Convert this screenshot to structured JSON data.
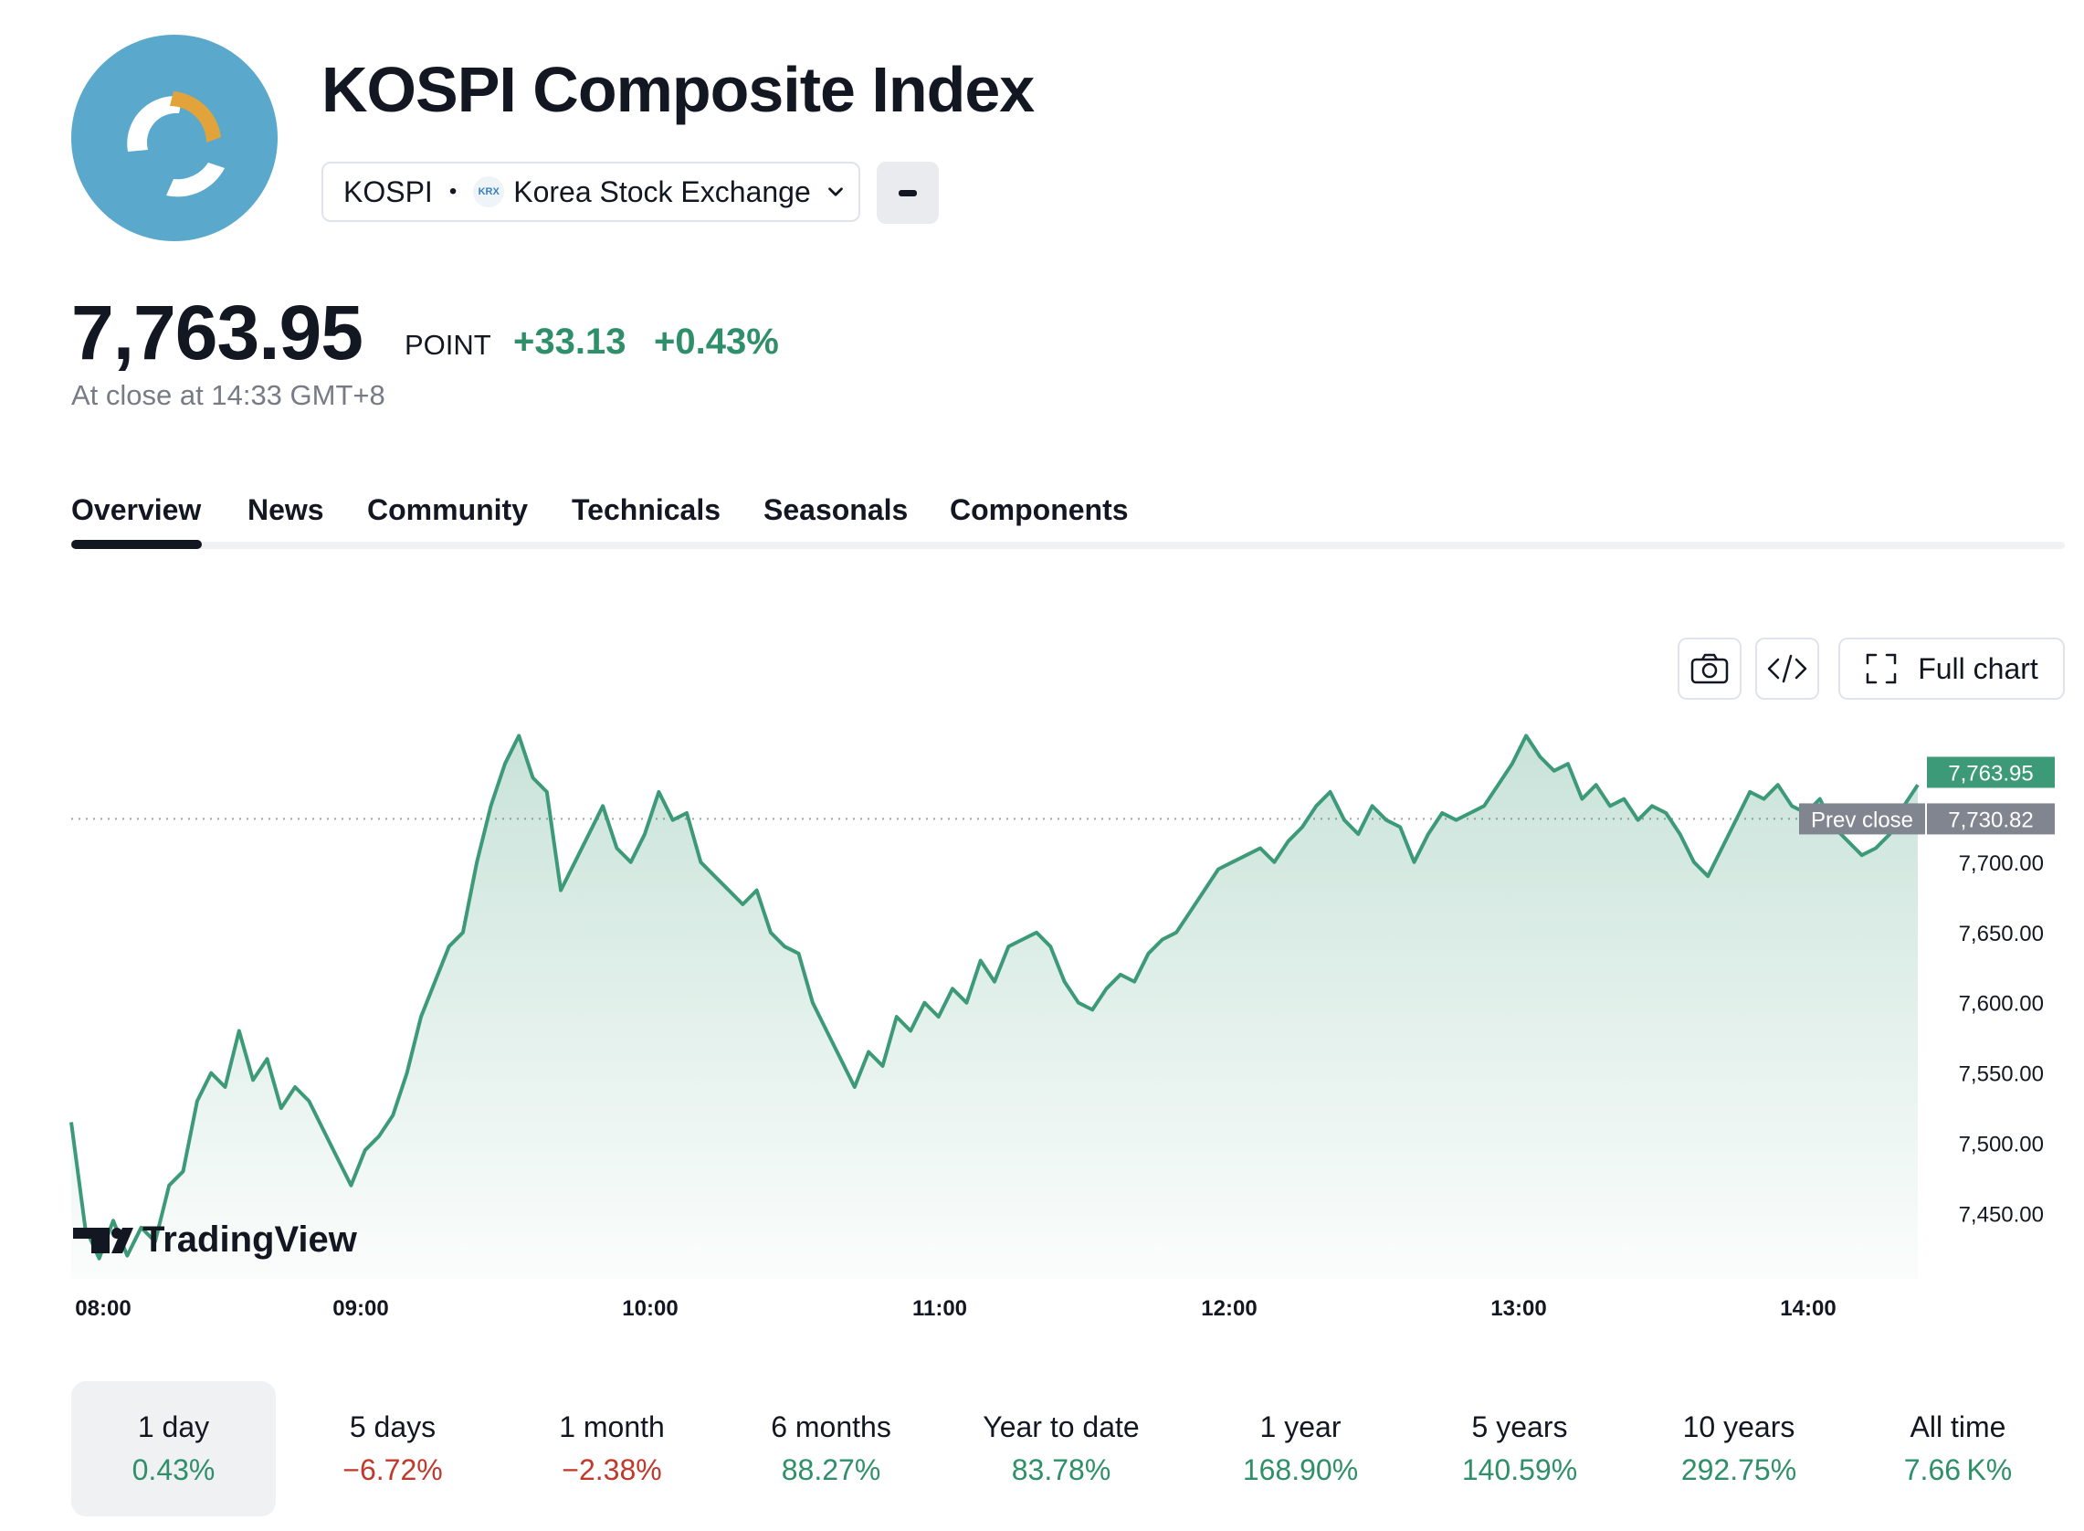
{
  "header": {
    "title": "KOSPI Composite Index",
    "symbol": "KOSPI",
    "exchange": "Korea Stock Exchange",
    "exchange_badge": "KRX"
  },
  "quote": {
    "price": "7,763.95",
    "unit": "POINT",
    "change": "+33.13",
    "change_pct": "+0.43%",
    "close_info": "At close at 14:33 GMT+8"
  },
  "tabs": [
    "Overview",
    "News",
    "Community",
    "Technicals",
    "Seasonals",
    "Components"
  ],
  "toolbar": {
    "full_chart_label": "Full chart"
  },
  "colors": {
    "up": "#2f8f6b",
    "down": "#c0392b",
    "line": "#3d9a78"
  },
  "chart_data": {
    "type": "area",
    "branding": "TradingView",
    "x_ticks": [
      "08:00",
      "09:00",
      "10:00",
      "11:00",
      "12:00",
      "13:00",
      "14:00"
    ],
    "y_ticks": [
      "7,700.00",
      "7,650.00",
      "7,600.00",
      "7,550.00",
      "7,500.00",
      "7,450.00"
    ],
    "ylim": [
      7410,
      7800
    ],
    "last_price_label": "7,763.95",
    "last_price": 7763.95,
    "prev_close_label": "Prev close",
    "prev_close_value": "7,730.82",
    "prev_close": 7730.82,
    "series": [
      {
        "values": [
          [
            0,
            7515
          ],
          [
            2,
            7440
          ],
          [
            4,
            7418
          ],
          [
            6,
            7445
          ],
          [
            8,
            7420
          ],
          [
            10,
            7440
          ],
          [
            12,
            7430
          ],
          [
            14,
            7470
          ],
          [
            16,
            7480
          ],
          [
            18,
            7530
          ],
          [
            20,
            7550
          ],
          [
            22,
            7540
          ],
          [
            24,
            7580
          ],
          [
            26,
            7545
          ],
          [
            28,
            7560
          ],
          [
            30,
            7525
          ],
          [
            32,
            7540
          ],
          [
            34,
            7530
          ],
          [
            36,
            7510
          ],
          [
            38,
            7490
          ],
          [
            40,
            7470
          ],
          [
            42,
            7495
          ],
          [
            44,
            7505
          ],
          [
            46,
            7520
          ],
          [
            48,
            7550
          ],
          [
            50,
            7590
          ],
          [
            52,
            7615
          ],
          [
            54,
            7640
          ],
          [
            56,
            7650
          ],
          [
            58,
            7700
          ],
          [
            60,
            7740
          ],
          [
            62,
            7770
          ],
          [
            64,
            7790
          ],
          [
            66,
            7760
          ],
          [
            68,
            7750
          ],
          [
            70,
            7680
          ],
          [
            72,
            7700
          ],
          [
            74,
            7720
          ],
          [
            76,
            7740
          ],
          [
            78,
            7710
          ],
          [
            80,
            7700
          ],
          [
            82,
            7720
          ],
          [
            84,
            7750
          ],
          [
            86,
            7730
          ],
          [
            88,
            7735
          ],
          [
            90,
            7700
          ],
          [
            92,
            7690
          ],
          [
            94,
            7680
          ],
          [
            96,
            7670
          ],
          [
            98,
            7680
          ],
          [
            100,
            7650
          ],
          [
            102,
            7640
          ],
          [
            104,
            7635
          ],
          [
            106,
            7600
          ],
          [
            108,
            7580
          ],
          [
            110,
            7560
          ],
          [
            112,
            7540
          ],
          [
            114,
            7565
          ],
          [
            116,
            7555
          ],
          [
            118,
            7590
          ],
          [
            120,
            7580
          ],
          [
            122,
            7600
          ],
          [
            124,
            7590
          ],
          [
            126,
            7610
          ],
          [
            128,
            7600
          ],
          [
            130,
            7630
          ],
          [
            132,
            7615
          ],
          [
            134,
            7640
          ],
          [
            136,
            7645
          ],
          [
            138,
            7650
          ],
          [
            140,
            7640
          ],
          [
            142,
            7615
          ],
          [
            144,
            7600
          ],
          [
            146,
            7595
          ],
          [
            148,
            7610
          ],
          [
            150,
            7620
          ],
          [
            152,
            7615
          ],
          [
            154,
            7635
          ],
          [
            156,
            7645
          ],
          [
            158,
            7650
          ],
          [
            160,
            7665
          ],
          [
            162,
            7680
          ],
          [
            164,
            7695
          ],
          [
            166,
            7700
          ],
          [
            168,
            7705
          ],
          [
            170,
            7710
          ],
          [
            172,
            7700
          ],
          [
            174,
            7715
          ],
          [
            176,
            7725
          ],
          [
            178,
            7740
          ],
          [
            180,
            7750
          ],
          [
            182,
            7730
          ],
          [
            184,
            7720
          ],
          [
            186,
            7740
          ],
          [
            188,
            7730
          ],
          [
            190,
            7725
          ],
          [
            192,
            7700
          ],
          [
            194,
            7720
          ],
          [
            196,
            7735
          ],
          [
            198,
            7730
          ],
          [
            200,
            7735
          ],
          [
            202,
            7740
          ],
          [
            204,
            7755
          ],
          [
            206,
            7770
          ],
          [
            208,
            7790
          ],
          [
            210,
            7775
          ],
          [
            212,
            7765
          ],
          [
            214,
            7770
          ],
          [
            216,
            7745
          ],
          [
            218,
            7755
          ],
          [
            220,
            7740
          ],
          [
            222,
            7745
          ],
          [
            224,
            7730
          ],
          [
            226,
            7740
          ],
          [
            228,
            7735
          ],
          [
            230,
            7720
          ],
          [
            232,
            7700
          ],
          [
            234,
            7690
          ],
          [
            236,
            7710
          ],
          [
            238,
            7730
          ],
          [
            240,
            7750
          ],
          [
            242,
            7745
          ],
          [
            244,
            7755
          ],
          [
            246,
            7740
          ],
          [
            248,
            7735
          ],
          [
            250,
            7745
          ],
          [
            252,
            7725
          ],
          [
            254,
            7715
          ],
          [
            256,
            7705
          ],
          [
            258,
            7710
          ],
          [
            260,
            7720
          ],
          [
            262,
            7740
          ],
          [
            264,
            7755
          ]
        ]
      }
    ]
  },
  "periods": [
    {
      "label": "1 day",
      "value": "0.43%",
      "dir": "pos"
    },
    {
      "label": "5 days",
      "value": "−6.72%",
      "dir": "neg"
    },
    {
      "label": "1 month",
      "value": "−2.38%",
      "dir": "neg"
    },
    {
      "label": "6 months",
      "value": "88.27%",
      "dir": "pos"
    },
    {
      "label": "Year to date",
      "value": "83.78%",
      "dir": "pos"
    },
    {
      "label": "1 year",
      "value": "168.90%",
      "dir": "pos"
    },
    {
      "label": "5 years",
      "value": "140.59%",
      "dir": "pos"
    },
    {
      "label": "10 years",
      "value": "292.75%",
      "dir": "pos"
    },
    {
      "label": "All time",
      "value": "7.66 K%",
      "dir": "pos"
    }
  ]
}
